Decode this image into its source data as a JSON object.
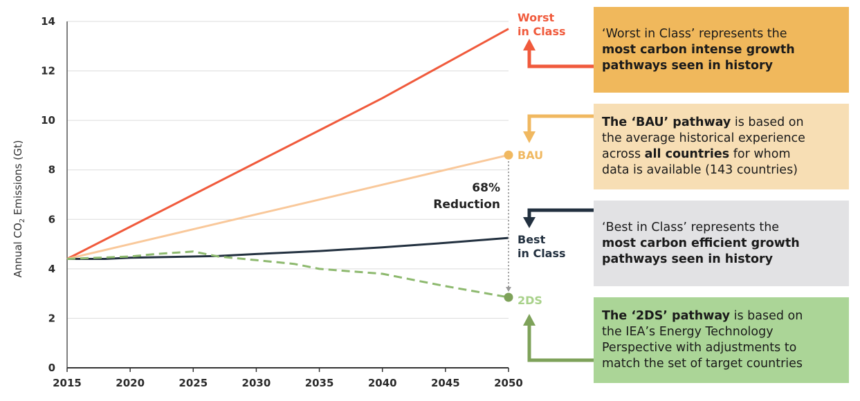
{
  "chart_data": {
    "type": "line",
    "ylabel_prefix": "Annual CO",
    "ylabel_sub": "2",
    "ylabel_suffix": " Emissions (Gt)",
    "xlim": [
      2015,
      2050
    ],
    "ylim": [
      0,
      14
    ],
    "xticks": [
      "2015",
      "2020",
      "2025",
      "2030",
      "2035",
      "2040",
      "2045",
      "2050"
    ],
    "yticks": [
      "0",
      "2",
      "4",
      "6",
      "8",
      "10",
      "12",
      "14"
    ],
    "grid": "horizontal",
    "series": [
      {
        "name": "Worst in Class",
        "color": "#f05a3c",
        "style": "solid",
        "x": [
          2015,
          2020,
          2025,
          2030,
          2035,
          2040,
          2045,
          2050
        ],
        "y": [
          4.4,
          5.7,
          7.0,
          8.3,
          9.6,
          10.9,
          12.3,
          13.7
        ]
      },
      {
        "name": "BAU",
        "color": "#f9c89a",
        "style": "solid",
        "x": [
          2015,
          2020,
          2025,
          2030,
          2035,
          2040,
          2045,
          2050
        ],
        "y": [
          4.4,
          5.0,
          5.6,
          6.2,
          6.8,
          7.4,
          8.0,
          8.6
        ]
      },
      {
        "name": "Best in Class",
        "color": "#22303f",
        "style": "solid",
        "x": [
          2015,
          2018,
          2020,
          2025,
          2027,
          2030,
          2035,
          2040,
          2045,
          2050
        ],
        "y": [
          4.4,
          4.4,
          4.45,
          4.5,
          4.52,
          4.6,
          4.72,
          4.87,
          5.05,
          5.25
        ]
      },
      {
        "name": "2DS",
        "color": "#8db96e",
        "style": "dashed",
        "x": [
          2015,
          2020,
          2022,
          2025,
          2027,
          2030,
          2033,
          2035,
          2040,
          2043,
          2045,
          2050
        ],
        "y": [
          4.4,
          4.5,
          4.6,
          4.7,
          4.5,
          4.35,
          4.2,
          4.0,
          3.8,
          3.5,
          3.3,
          2.85
        ]
      }
    ],
    "end_labels": [
      {
        "text_1": "Worst",
        "text_2": "in Class",
        "color": "#f05a3c"
      },
      {
        "text_1": "BAU",
        "text_2": "",
        "color": "#f0b860"
      },
      {
        "text_1": "Best",
        "text_2": "in Class",
        "color": "#22303f"
      },
      {
        "text_1": "2DS",
        "text_2": "",
        "color": "#a8d18a"
      }
    ],
    "reduction_label": {
      "line_1": "68%",
      "line_2": "Reduction"
    },
    "colors": {
      "bau_marker": "#f0b860",
      "ds_marker": "#7ea25a",
      "reduction_arrow": "#999999"
    }
  },
  "callouts": {
    "worst": {
      "bg": "#f0b85c",
      "arrow": "#f05a3c",
      "l1": "‘Worst in Class’ represents the",
      "l2": "most carbon intense growth",
      "l3": "pathways seen in history"
    },
    "bau": {
      "bg": "#f7deb4",
      "arrow": "#f0b860",
      "l1_b": "The ‘BAU’ pathway",
      "l1_r": " is based on",
      "l2": "the average historical experience",
      "l3_a": "across ",
      "l3_b": "all countries",
      "l3_c": " for whom",
      "l4": "data is available (143 countries)"
    },
    "best": {
      "bg": "#e2e2e4",
      "arrow": "#22303f",
      "l1": "‘Best in Class’ represents the",
      "l2": "most carbon efficient growth",
      "l3": "pathways seen in history"
    },
    "ds": {
      "bg": "#abd597",
      "arrow": "#7ea25a",
      "l1_b": "The ‘2DS’ pathway",
      "l1_r": " is based on",
      "l2": "the IEA’s Energy Technology",
      "l3": "Perspective with adjustments to",
      "l4": "match the set of target countries"
    }
  }
}
